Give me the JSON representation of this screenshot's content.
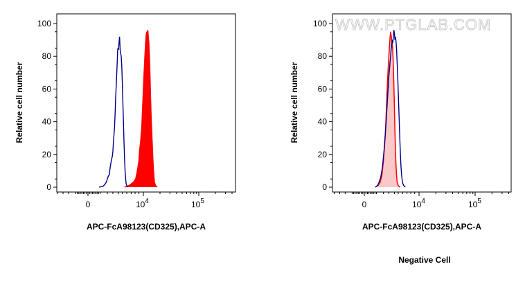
{
  "watermark": "WWW.PTGLAB.COM",
  "caption": "Negative Cell",
  "chart_data": [
    {
      "type": "area",
      "xlabel": "APC-FcA98123(CD325),APC-A",
      "ylabel": "Relative cell number",
      "ylim": [
        0,
        100
      ],
      "y_ticks": [
        0,
        20,
        40,
        60,
        80,
        100
      ],
      "x_tick_labels": [
        {
          "base": "0",
          "exp": ""
        },
        {
          "base": "10",
          "exp": "4"
        },
        {
          "base": "10",
          "exp": "5"
        }
      ],
      "series": [
        {
          "role": "control",
          "style": "line",
          "color": "#00008b",
          "points": [
            [
              0.2,
              0
            ],
            [
              0.27,
              0.5
            ],
            [
              0.3,
              1.5
            ],
            [
              0.33,
              3
            ],
            [
              0.35,
              5
            ],
            [
              0.37,
              7
            ],
            [
              0.385,
              7.5
            ],
            [
              0.4,
              12
            ],
            [
              0.42,
              16
            ],
            [
              0.44,
              19
            ],
            [
              0.45,
              22
            ],
            [
              0.46,
              28
            ],
            [
              0.47,
              32
            ],
            [
              0.48,
              37
            ],
            [
              0.49,
              45
            ],
            [
              0.5,
              55
            ],
            [
              0.51,
              62
            ],
            [
              0.52,
              70
            ],
            [
              0.53,
              78
            ],
            [
              0.535,
              83
            ],
            [
              0.54,
              85
            ],
            [
              0.55,
              84
            ],
            [
              0.56,
              88
            ],
            [
              0.57,
              92
            ],
            [
              0.575,
              89
            ],
            [
              0.58,
              84
            ],
            [
              0.59,
              82
            ],
            [
              0.6,
              80
            ],
            [
              0.61,
              74
            ],
            [
              0.62,
              64
            ],
            [
              0.63,
              52
            ],
            [
              0.64,
              40
            ],
            [
              0.65,
              28
            ],
            [
              0.66,
              18
            ],
            [
              0.67,
              10
            ],
            [
              0.68,
              5
            ],
            [
              0.69,
              2
            ],
            [
              0.7,
              1
            ],
            [
              0.72,
              0
            ]
          ]
        },
        {
          "role": "sample",
          "style": "filled",
          "color": "#ff0000",
          "points": [
            [
              0.66,
              0
            ],
            [
              0.7,
              0.5
            ],
            [
              0.74,
              1
            ],
            [
              0.78,
              2
            ],
            [
              0.82,
              3
            ],
            [
              0.86,
              5
            ],
            [
              0.88,
              8
            ],
            [
              0.9,
              12
            ],
            [
              0.92,
              16
            ],
            [
              0.93,
              22
            ],
            [
              0.95,
              28
            ],
            [
              0.96,
              32
            ],
            [
              0.97,
              36
            ],
            [
              0.98,
              44
            ],
            [
              0.99,
              52
            ],
            [
              1.0,
              60
            ],
            [
              1.01,
              68
            ],
            [
              1.02,
              75
            ],
            [
              1.03,
              82
            ],
            [
              1.04,
              88
            ],
            [
              1.05,
              93
            ],
            [
              1.06,
              95
            ],
            [
              1.07,
              94
            ],
            [
              1.08,
              96
            ],
            [
              1.09,
              92
            ],
            [
              1.1,
              88
            ],
            [
              1.11,
              80
            ],
            [
              1.12,
              68
            ],
            [
              1.13,
              55
            ],
            [
              1.14,
              44
            ],
            [
              1.15,
              35
            ],
            [
              1.16,
              27
            ],
            [
              1.17,
              19
            ],
            [
              1.18,
              12
            ],
            [
              1.19,
              7
            ],
            [
              1.2,
              3
            ],
            [
              1.22,
              1
            ],
            [
              1.25,
              0
            ]
          ]
        }
      ]
    },
    {
      "type": "area",
      "xlabel": "APC-FcA98123(CD325),APC-A",
      "ylabel": "Relative cell number",
      "ylim": [
        0,
        100
      ],
      "y_ticks": [
        0,
        20,
        40,
        60,
        80,
        100
      ],
      "x_tick_labels": [
        {
          "base": "0",
          "exp": ""
        },
        {
          "base": "10",
          "exp": "4"
        },
        {
          "base": "10",
          "exp": "5"
        }
      ],
      "series": [
        {
          "role": "control",
          "style": "line",
          "color": "#00008b",
          "points": [
            [
              0.2,
              0
            ],
            [
              0.24,
              1
            ],
            [
              0.27,
              3
            ],
            [
              0.3,
              6
            ],
            [
              0.33,
              12
            ],
            [
              0.36,
              22
            ],
            [
              0.39,
              35
            ],
            [
              0.42,
              52
            ],
            [
              0.45,
              68
            ],
            [
              0.47,
              76
            ],
            [
              0.49,
              84
            ],
            [
              0.51,
              90
            ],
            [
              0.52,
              88
            ],
            [
              0.53,
              92
            ],
            [
              0.54,
              96
            ],
            [
              0.55,
              94
            ],
            [
              0.56,
              90
            ],
            [
              0.57,
              92
            ],
            [
              0.58,
              89
            ],
            [
              0.59,
              84
            ],
            [
              0.6,
              76
            ],
            [
              0.61,
              68
            ],
            [
              0.62,
              58
            ],
            [
              0.63,
              48
            ],
            [
              0.64,
              38
            ],
            [
              0.65,
              28
            ],
            [
              0.66,
              20
            ],
            [
              0.67,
              13
            ],
            [
              0.68,
              8
            ],
            [
              0.69,
              5
            ],
            [
              0.7,
              2.5
            ],
            [
              0.72,
              1
            ],
            [
              0.75,
              0
            ]
          ]
        },
        {
          "role": "sample",
          "style": "filled",
          "color": "#ff0000",
          "fill": "#f9c8c8",
          "points": [
            [
              0.2,
              0
            ],
            [
              0.25,
              1
            ],
            [
              0.29,
              3
            ],
            [
              0.32,
              7
            ],
            [
              0.35,
              16
            ],
            [
              0.38,
              30
            ],
            [
              0.4,
              45
            ],
            [
              0.42,
              62
            ],
            [
              0.44,
              76
            ],
            [
              0.46,
              86
            ],
            [
              0.47,
              91
            ],
            [
              0.48,
              95
            ],
            [
              0.49,
              93
            ],
            [
              0.5,
              90
            ],
            [
              0.51,
              88
            ],
            [
              0.52,
              84
            ],
            [
              0.53,
              74
            ],
            [
              0.54,
              62
            ],
            [
              0.55,
              48
            ],
            [
              0.56,
              34
            ],
            [
              0.57,
              22
            ],
            [
              0.58,
              13
            ],
            [
              0.59,
              7
            ],
            [
              0.6,
              3
            ],
            [
              0.62,
              1
            ],
            [
              0.65,
              0
            ]
          ]
        }
      ]
    }
  ]
}
